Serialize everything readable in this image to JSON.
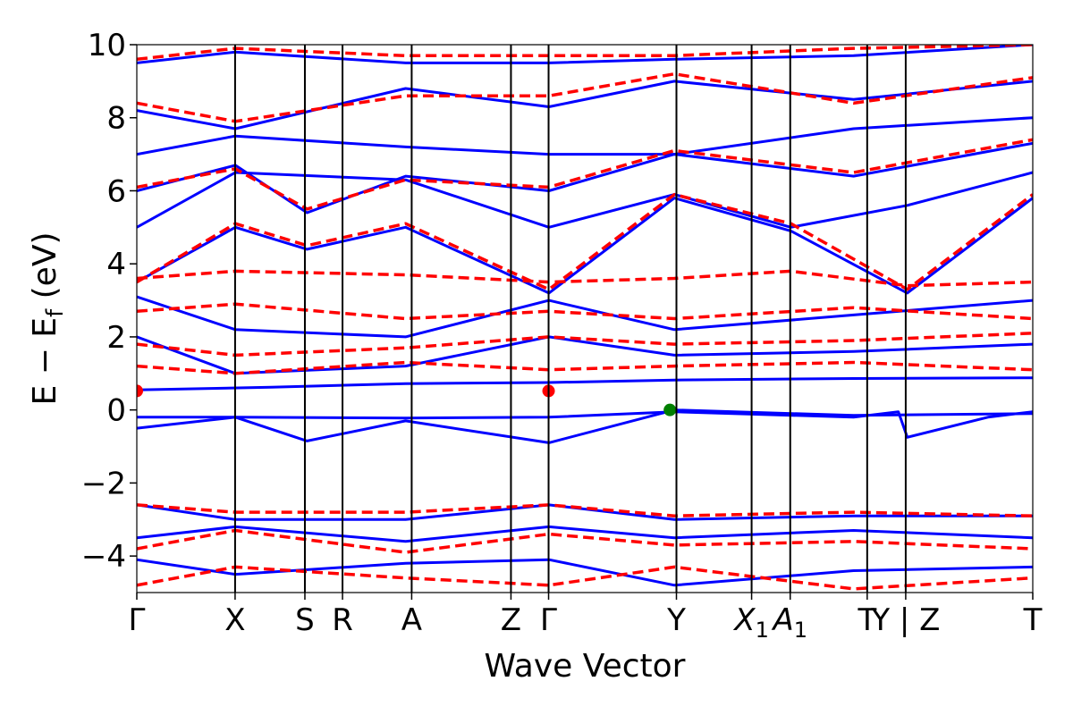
{
  "chart_data": {
    "type": "line",
    "title": "",
    "xlabel": "Wave Vector",
    "ylabel_parts": {
      "main": "E − E",
      "sub": "f",
      "unit": " (eV)"
    },
    "ylim": [
      -5,
      10
    ],
    "yticks": [
      -4,
      -2,
      0,
      2,
      4,
      6,
      8,
      10
    ],
    "ytick_labels": [
      "−4",
      "−2",
      "0",
      "2",
      "4",
      "6",
      "8",
      "10"
    ],
    "kpath": [
      {
        "label": "Γ",
        "k": 0.0
      },
      {
        "label": "X",
        "k": 0.1097
      },
      {
        "label": "S",
        "k": 0.1876
      },
      {
        "label": "R",
        "k": 0.2296
      },
      {
        "label": "A",
        "k": 0.3068
      },
      {
        "label": "Z",
        "k": 0.4176
      },
      {
        "label": "Γ",
        "k": 0.4596
      },
      {
        "label": "Y",
        "k": 0.6023
      },
      {
        "label": "X1",
        "k": 0.6862
      },
      {
        "label": "A1",
        "k": 0.7293
      },
      {
        "label": "T",
        "k": 0.8152
      },
      {
        "label": "Y | Z",
        "k": 0.8582
      },
      {
        "label": "T",
        "k": 1.0
      }
    ],
    "colors": {
      "spin_up": "#0000ff",
      "spin_down": "#ff0000",
      "cbm": "#ff0000",
      "vbm": "#008000",
      "kline": "#000000"
    },
    "series": [
      {
        "style": "solid",
        "color": "#0000ff",
        "points": [
          [
            0.0,
            0.55
          ],
          [
            0.15,
            0.62
          ],
          [
            0.3,
            0.72
          ],
          [
            0.46,
            0.75
          ],
          [
            0.6,
            0.82
          ],
          [
            0.8,
            0.86
          ],
          [
            1.0,
            0.88
          ]
        ]
      },
      {
        "style": "solid",
        "color": "#0000ff",
        "points": [
          [
            0.0,
            -0.2
          ],
          [
            0.11,
            -0.2
          ],
          [
            0.3,
            -0.22
          ],
          [
            0.46,
            -0.2
          ],
          [
            0.6,
            -0.05
          ],
          [
            0.8,
            -0.2
          ],
          [
            0.85,
            -0.05
          ],
          [
            0.86,
            -0.75
          ],
          [
            0.95,
            -0.2
          ],
          [
            1.0,
            -0.05
          ]
        ]
      },
      {
        "style": "solid",
        "color": "#0000ff",
        "points": [
          [
            0.0,
            -0.5
          ],
          [
            0.11,
            -0.2
          ],
          [
            0.19,
            -0.85
          ],
          [
            0.3,
            -0.3
          ],
          [
            0.46,
            -0.9
          ],
          [
            0.6,
            0.0
          ],
          [
            0.8,
            -0.15
          ],
          [
            1.0,
            -0.1
          ]
        ]
      },
      {
        "style": "solid",
        "color": "#0000ff",
        "points": [
          [
            0.0,
            -2.6
          ],
          [
            0.11,
            -3.0
          ],
          [
            0.3,
            -3.0
          ],
          [
            0.46,
            -2.6
          ],
          [
            0.6,
            -3.0
          ],
          [
            0.8,
            -2.9
          ],
          [
            1.0,
            -2.9
          ]
        ]
      },
      {
        "style": "solid",
        "color": "#0000ff",
        "points": [
          [
            0.0,
            -3.5
          ],
          [
            0.11,
            -3.2
          ],
          [
            0.3,
            -3.6
          ],
          [
            0.46,
            -3.2
          ],
          [
            0.6,
            -3.5
          ],
          [
            0.8,
            -3.3
          ],
          [
            1.0,
            -3.5
          ]
        ]
      },
      {
        "style": "solid",
        "color": "#0000ff",
        "points": [
          [
            0.0,
            -4.1
          ],
          [
            0.11,
            -4.5
          ],
          [
            0.3,
            -4.2
          ],
          [
            0.46,
            -4.1
          ],
          [
            0.6,
            -4.8
          ],
          [
            0.8,
            -4.4
          ],
          [
            1.0,
            -4.3
          ]
        ]
      },
      {
        "style": "solid",
        "color": "#0000ff",
        "points": [
          [
            0.0,
            3.1
          ],
          [
            0.11,
            2.2
          ],
          [
            0.3,
            2.0
          ],
          [
            0.46,
            3.0
          ],
          [
            0.6,
            2.2
          ],
          [
            0.8,
            2.6
          ],
          [
            1.0,
            3.0
          ]
        ]
      },
      {
        "style": "solid",
        "color": "#0000ff",
        "points": [
          [
            0.0,
            2.0
          ],
          [
            0.11,
            1.0
          ],
          [
            0.3,
            1.2
          ],
          [
            0.46,
            2.0
          ],
          [
            0.6,
            1.5
          ],
          [
            0.8,
            1.6
          ],
          [
            1.0,
            1.8
          ]
        ]
      },
      {
        "style": "solid",
        "color": "#0000ff",
        "points": [
          [
            0.0,
            3.5
          ],
          [
            0.11,
            5.0
          ],
          [
            0.19,
            4.4
          ],
          [
            0.3,
            5.0
          ],
          [
            0.46,
            3.2
          ],
          [
            0.6,
            5.8
          ],
          [
            0.73,
            4.9
          ],
          [
            0.86,
            3.2
          ],
          [
            1.0,
            5.8
          ]
        ]
      },
      {
        "style": "solid",
        "color": "#0000ff",
        "points": [
          [
            0.0,
            5.0
          ],
          [
            0.11,
            6.5
          ],
          [
            0.3,
            6.3
          ],
          [
            0.46,
            5.0
          ],
          [
            0.6,
            5.9
          ],
          [
            0.73,
            5.0
          ],
          [
            0.86,
            5.6
          ],
          [
            1.0,
            6.5
          ]
        ]
      },
      {
        "style": "solid",
        "color": "#0000ff",
        "points": [
          [
            0.0,
            6.0
          ],
          [
            0.11,
            6.7
          ],
          [
            0.19,
            5.4
          ],
          [
            0.3,
            6.4
          ],
          [
            0.46,
            6.0
          ],
          [
            0.6,
            7.0
          ],
          [
            0.8,
            6.4
          ],
          [
            1.0,
            7.3
          ]
        ]
      },
      {
        "style": "solid",
        "color": "#0000ff",
        "points": [
          [
            0.0,
            7.0
          ],
          [
            0.11,
            7.5
          ],
          [
            0.3,
            7.2
          ],
          [
            0.46,
            7.0
          ],
          [
            0.6,
            7.0
          ],
          [
            0.8,
            7.7
          ],
          [
            1.0,
            8.0
          ]
        ]
      },
      {
        "style": "solid",
        "color": "#0000ff",
        "points": [
          [
            0.0,
            8.2
          ],
          [
            0.11,
            7.7
          ],
          [
            0.3,
            8.8
          ],
          [
            0.46,
            8.3
          ],
          [
            0.6,
            9.0
          ],
          [
            0.8,
            8.5
          ],
          [
            1.0,
            9.0
          ]
        ]
      },
      {
        "style": "solid",
        "color": "#0000ff",
        "points": [
          [
            0.0,
            9.5
          ],
          [
            0.11,
            9.8
          ],
          [
            0.3,
            9.5
          ],
          [
            0.46,
            9.5
          ],
          [
            0.6,
            9.6
          ],
          [
            0.8,
            9.7
          ],
          [
            1.0,
            10.0
          ]
        ]
      },
      {
        "style": "dashed",
        "color": "#ff0000",
        "points": [
          [
            0.0,
            3.6
          ],
          [
            0.11,
            3.8
          ],
          [
            0.3,
            3.7
          ],
          [
            0.46,
            3.5
          ],
          [
            0.6,
            3.6
          ],
          [
            0.73,
            3.8
          ],
          [
            0.86,
            3.4
          ],
          [
            1.0,
            3.5
          ]
        ]
      },
      {
        "style": "dashed",
        "color": "#ff0000",
        "points": [
          [
            0.0,
            2.7
          ],
          [
            0.11,
            2.9
          ],
          [
            0.3,
            2.5
          ],
          [
            0.46,
            2.7
          ],
          [
            0.6,
            2.5
          ],
          [
            0.8,
            2.8
          ],
          [
            1.0,
            2.5
          ]
        ]
      },
      {
        "style": "dashed",
        "color": "#ff0000",
        "points": [
          [
            0.0,
            1.8
          ],
          [
            0.11,
            1.5
          ],
          [
            0.3,
            1.7
          ],
          [
            0.46,
            2.0
          ],
          [
            0.6,
            1.8
          ],
          [
            0.8,
            1.9
          ],
          [
            1.0,
            2.1
          ]
        ]
      },
      {
        "style": "dashed",
        "color": "#ff0000",
        "points": [
          [
            0.0,
            1.2
          ],
          [
            0.11,
            1.0
          ],
          [
            0.3,
            1.3
          ],
          [
            0.46,
            1.1
          ],
          [
            0.6,
            1.2
          ],
          [
            0.8,
            1.3
          ],
          [
            1.0,
            1.1
          ]
        ]
      },
      {
        "style": "dashed",
        "color": "#ff0000",
        "points": [
          [
            0.0,
            -2.6
          ],
          [
            0.11,
            -2.8
          ],
          [
            0.3,
            -2.8
          ],
          [
            0.46,
            -2.6
          ],
          [
            0.6,
            -2.9
          ],
          [
            0.8,
            -2.8
          ],
          [
            1.0,
            -2.9
          ]
        ]
      },
      {
        "style": "dashed",
        "color": "#ff0000",
        "points": [
          [
            0.0,
            -3.8
          ],
          [
            0.11,
            -3.3
          ],
          [
            0.3,
            -3.9
          ],
          [
            0.46,
            -3.4
          ],
          [
            0.6,
            -3.7
          ],
          [
            0.8,
            -3.6
          ],
          [
            1.0,
            -3.8
          ]
        ]
      },
      {
        "style": "dashed",
        "color": "#ff0000",
        "points": [
          [
            0.0,
            -4.8
          ],
          [
            0.11,
            -4.3
          ],
          [
            0.3,
            -4.6
          ],
          [
            0.46,
            -4.8
          ],
          [
            0.6,
            -4.3
          ],
          [
            0.8,
            -4.9
          ],
          [
            1.0,
            -4.6
          ]
        ]
      },
      {
        "style": "dashed",
        "color": "#ff0000",
        "points": [
          [
            0.0,
            3.5
          ],
          [
            0.11,
            5.1
          ],
          [
            0.19,
            4.5
          ],
          [
            0.3,
            5.1
          ],
          [
            0.46,
            3.3
          ],
          [
            0.6,
            5.9
          ],
          [
            0.73,
            5.1
          ],
          [
            0.86,
            3.3
          ],
          [
            1.0,
            5.9
          ]
        ]
      },
      {
        "style": "dashed",
        "color": "#ff0000",
        "points": [
          [
            0.0,
            6.1
          ],
          [
            0.11,
            6.6
          ],
          [
            0.19,
            5.5
          ],
          [
            0.3,
            6.3
          ],
          [
            0.46,
            6.1
          ],
          [
            0.6,
            7.1
          ],
          [
            0.8,
            6.5
          ],
          [
            1.0,
            7.4
          ]
        ]
      },
      {
        "style": "dashed",
        "color": "#ff0000",
        "points": [
          [
            0.0,
            8.4
          ],
          [
            0.11,
            7.9
          ],
          [
            0.3,
            8.6
          ],
          [
            0.46,
            8.6
          ],
          [
            0.6,
            9.2
          ],
          [
            0.8,
            8.4
          ],
          [
            1.0,
            9.1
          ]
        ]
      },
      {
        "style": "dashed",
        "color": "#ff0000",
        "points": [
          [
            0.0,
            9.6
          ],
          [
            0.11,
            9.9
          ],
          [
            0.3,
            9.7
          ],
          [
            0.46,
            9.7
          ],
          [
            0.6,
            9.7
          ],
          [
            0.8,
            9.9
          ],
          [
            1.0,
            10.0
          ]
        ]
      }
    ],
    "markers": [
      {
        "k": 0.0,
        "e": 0.52,
        "color": "#ff0000"
      },
      {
        "k": 0.4596,
        "e": 0.52,
        "color": "#ff0000"
      },
      {
        "k": 0.595,
        "e": 0.0,
        "color": "#008000"
      }
    ]
  }
}
